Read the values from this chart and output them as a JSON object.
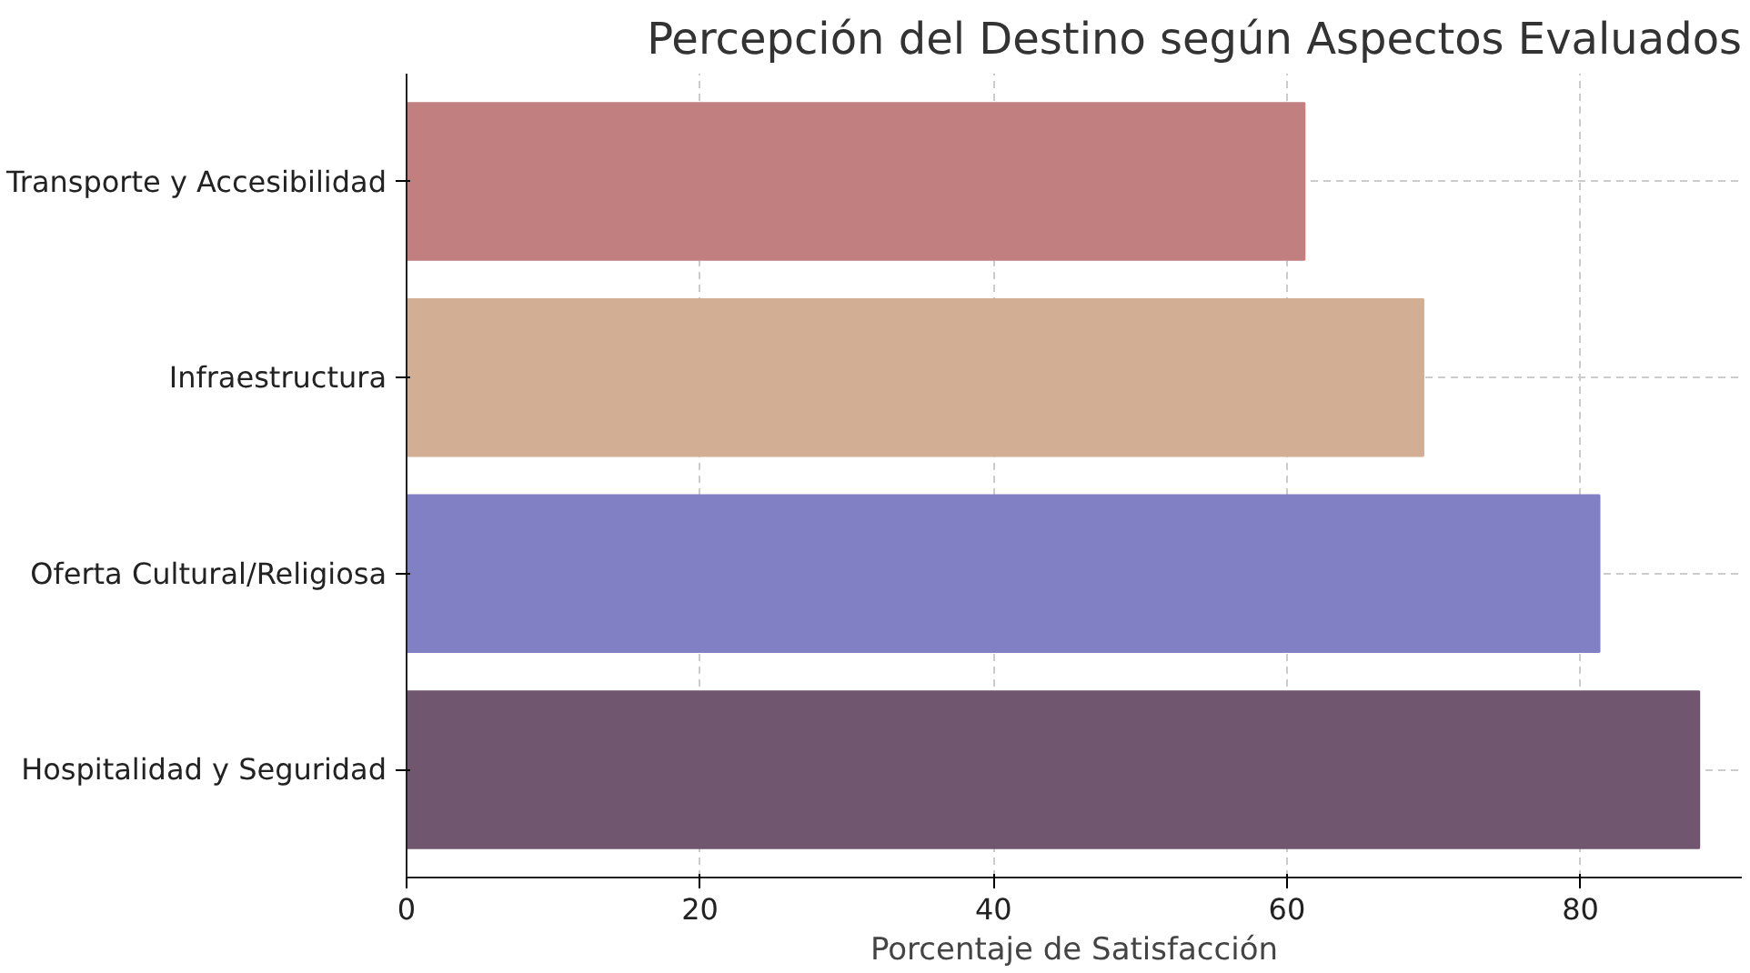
{
  "chart_data": {
    "type": "bar",
    "orientation": "horizontal",
    "title": "Percepción del Destino según Aspectos Evaluados",
    "xlabel": "Porcentaje de Satisfacción",
    "categories": [
      "Transporte y Accesibilidad",
      "Infraestructura",
      "Oferta Cultural/Religiosa",
      "Hospitalidad y Seguridad"
    ],
    "values": [
      61.2,
      69.3,
      81.3,
      88.1
    ],
    "colors": [
      "#c17f7f",
      "#d2af94",
      "#8280c4",
      "#71566f"
    ],
    "xlim": [
      0,
      91
    ],
    "xticks": [
      0,
      20,
      40,
      60,
      80
    ],
    "grid": true
  }
}
